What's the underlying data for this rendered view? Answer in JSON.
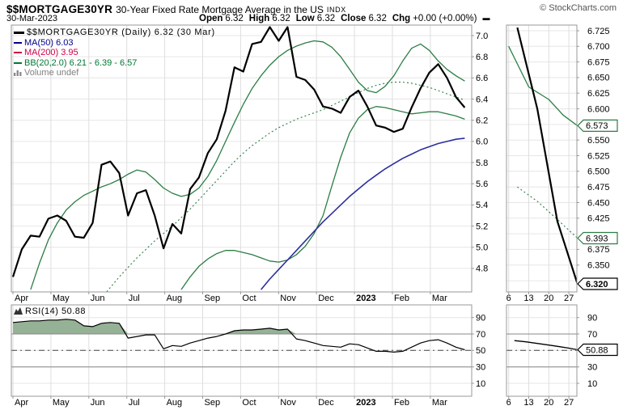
{
  "header": {
    "symbol": "$$MORTGAGE30YR",
    "description": "30-Year Fixed Rate Mortgage Average in the US",
    "exchange": "INDX",
    "credit": "© StockCharts.com",
    "date": "30-Mar-2023",
    "quote": [
      {
        "key": "open",
        "label": "Open",
        "value": "6.32"
      },
      {
        "key": "high",
        "label": "High",
        "value": "6.32"
      },
      {
        "key": "low",
        "label": "Low",
        "value": "6.32"
      },
      {
        "key": "close",
        "label": "Close",
        "value": "6.32"
      },
      {
        "key": "chg",
        "label": "Chg",
        "value": "+0.00 (+0.00%)"
      }
    ],
    "change_marker": "▬"
  },
  "legend": [
    {
      "key": "price",
      "icon": "line-swatch",
      "text": "$$MORTGAGE30YR (Daily) 6.32 (30 Mar)",
      "color": "#000000"
    },
    {
      "key": "ma50",
      "icon": "line-swatch",
      "text": "MA(50) 6.03",
      "color": "#00008b"
    },
    {
      "key": "ma200",
      "icon": "line-swatch",
      "text": "MA(200) 3.95",
      "color": "#cc0044"
    },
    {
      "key": "bb",
      "icon": "line-swatch",
      "text": "BB(20,2.0) 6.21 - 6.39 - 6.57",
      "color": "#007733"
    },
    {
      "key": "volume",
      "icon": "volume-icon",
      "text": "Volume undef",
      "color": "#808080"
    }
  ],
  "colors": {
    "price": "#000000",
    "ma50": "#2e2e9e",
    "ma200": "#cc0044",
    "bb": "#2b7d44",
    "rsi_fill": "#96b296",
    "grid": "#e6e6e6",
    "grid_v": "#dedede",
    "border": "#999999",
    "level": "#888888",
    "midline": "#444444"
  },
  "chart_data": [
    {
      "id": "price-main",
      "type": "line",
      "title": "$$MORTGAGE30YR (Daily)",
      "x_labels": [
        "Apr",
        "May",
        "Jun",
        "Jul",
        "Aug",
        "Sep",
        "Oct",
        "Nov",
        "Dec",
        "2023",
        "Feb",
        "Mar"
      ],
      "y_ticks": [
        "7.0",
        "6.8",
        "6.6",
        "6.4",
        "6.2",
        "6.0",
        "5.8",
        "5.6",
        "5.4",
        "5.2",
        "5.0",
        "4.8"
      ],
      "ylim": [
        4.578,
        7.099
      ],
      "series": [
        {
          "name": "bb-upper",
          "color": "#2b7d44",
          "width": 1.3,
          "dash": "",
          "values": [
            null,
            null,
            4.6,
            4.85,
            5.07,
            5.23,
            5.35,
            5.43,
            5.49,
            5.53,
            5.57,
            5.6,
            5.64,
            5.69,
            5.73,
            5.71,
            5.64,
            5.56,
            5.51,
            5.48,
            5.5,
            5.56,
            5.67,
            5.82,
            6.0,
            6.18,
            6.35,
            6.5,
            6.62,
            6.72,
            6.8,
            6.86,
            6.9,
            6.93,
            6.95,
            6.94,
            6.89,
            6.8,
            6.68,
            6.56,
            6.48,
            6.46,
            6.52,
            6.62,
            6.76,
            6.88,
            6.92,
            6.86,
            6.76,
            6.68,
            6.62,
            6.57
          ]
        },
        {
          "name": "bb-middle",
          "color": "#2b7d44",
          "width": 1.1,
          "dash": "2 3",
          "values": [
            null,
            null,
            null,
            null,
            null,
            null,
            null,
            null,
            null,
            null,
            4.52,
            4.62,
            4.72,
            4.81,
            4.9,
            4.98,
            5.06,
            5.13,
            5.2,
            5.28,
            5.36,
            5.45,
            5.54,
            5.63,
            5.72,
            5.81,
            5.89,
            5.96,
            6.02,
            6.08,
            6.13,
            6.17,
            6.21,
            6.24,
            6.27,
            6.3,
            6.34,
            6.38,
            6.42,
            6.46,
            6.5,
            6.53,
            6.55,
            6.56,
            6.56,
            6.55,
            6.53,
            6.51,
            6.48,
            6.45,
            6.42,
            6.39
          ]
        },
        {
          "name": "bb-lower",
          "color": "#2b7d44",
          "width": 1.3,
          "dash": "",
          "values": [
            null,
            null,
            null,
            null,
            null,
            null,
            null,
            null,
            null,
            null,
            null,
            null,
            null,
            null,
            null,
            null,
            null,
            null,
            null,
            4.6,
            4.72,
            4.82,
            4.89,
            4.94,
            4.97,
            4.97,
            4.95,
            4.93,
            4.9,
            4.87,
            4.86,
            4.88,
            4.93,
            5.01,
            5.13,
            5.3,
            5.58,
            5.85,
            6.08,
            6.22,
            6.3,
            6.33,
            6.32,
            6.3,
            6.28,
            6.26,
            6.27,
            6.28,
            6.28,
            6.26,
            6.24,
            6.21
          ]
        },
        {
          "name": "ma50",
          "color": "#2e2e9e",
          "width": 1.6,
          "dash": "",
          "values": [
            null,
            null,
            null,
            null,
            null,
            null,
            null,
            null,
            null,
            null,
            null,
            null,
            null,
            null,
            null,
            null,
            null,
            null,
            null,
            null,
            null,
            null,
            null,
            null,
            null,
            null,
            null,
            null,
            4.6,
            4.7,
            4.79,
            4.88,
            4.97,
            5.06,
            5.15,
            5.24,
            5.32,
            5.4,
            5.48,
            5.55,
            5.62,
            5.68,
            5.74,
            5.79,
            5.84,
            5.88,
            5.92,
            5.95,
            5.98,
            6.0,
            6.02,
            6.03
          ]
        },
        {
          "name": "price",
          "color": "#000000",
          "width": 2.2,
          "dash": "",
          "values": [
            4.72,
            4.98,
            5.11,
            5.1,
            5.27,
            5.3,
            5.25,
            5.1,
            5.09,
            5.23,
            5.78,
            5.81,
            5.7,
            5.3,
            5.51,
            5.54,
            5.3,
            4.99,
            5.22,
            5.13,
            5.55,
            5.66,
            5.89,
            6.02,
            6.29,
            6.7,
            6.66,
            6.92,
            6.94,
            7.08,
            6.95,
            7.08,
            6.61,
            6.58,
            6.49,
            6.33,
            6.31,
            6.27,
            6.42,
            6.48,
            6.33,
            6.15,
            6.13,
            6.09,
            6.12,
            6.32,
            6.5,
            6.65,
            6.73,
            6.6,
            6.42,
            6.32
          ]
        }
      ]
    },
    {
      "id": "price-zoom",
      "type": "line",
      "x_ticks": [
        "6",
        "13",
        "20",
        "27"
      ],
      "y_ticks": [
        "6.725",
        "6.700",
        "6.675",
        "6.650",
        "6.625",
        "6.600",
        "6.550",
        "6.525",
        "6.500",
        "6.475",
        "6.450",
        "6.425",
        "6.375",
        "6.350"
      ],
      "grid_from": 6.725,
      "grid_step": 0.025,
      "grid_to": 6.325,
      "ylim": [
        6.307,
        6.734
      ],
      "series": [
        {
          "name": "bb-upper",
          "color": "#2b7d44",
          "width": 1.3,
          "dash": "",
          "points": [
            [
              6,
              6.7
            ],
            [
              13,
              6.635
            ],
            [
              20,
              6.615
            ],
            [
              25,
              6.59
            ],
            [
              30,
              6.573
            ]
          ]
        },
        {
          "name": "bb-middle",
          "color": "#2b7d44",
          "width": 1.1,
          "dash": "2 3",
          "points": [
            [
              9,
              6.475
            ],
            [
              16,
              6.452
            ],
            [
              23,
              6.423
            ],
            [
              30,
              6.393
            ]
          ]
        },
        {
          "name": "price",
          "color": "#000000",
          "width": 2.2,
          "dash": "",
          "points": [
            [
              9,
              6.73
            ],
            [
              16,
              6.6
            ],
            [
              23,
              6.42
            ],
            [
              30,
              6.32
            ]
          ]
        }
      ],
      "callouts": [
        {
          "label": "6.573",
          "value": 6.573,
          "border": "#2b7d44",
          "bold": false
        },
        {
          "label": "6.393",
          "value": 6.393,
          "border": "#2b7d44",
          "bold": false
        },
        {
          "label": "6.320",
          "value": 6.32,
          "border": "#000000",
          "bold": true
        }
      ]
    },
    {
      "id": "rsi-main",
      "type": "line",
      "title": "RSI(14) 50.88",
      "x_labels": [
        "Apr",
        "May",
        "Jun",
        "Jul",
        "Aug",
        "Sep",
        "Oct",
        "Nov",
        "Dec",
        "2023",
        "Feb",
        "Mar"
      ],
      "y_ticks": [
        "90",
        "70",
        "50",
        "30",
        "10"
      ],
      "ylim": [
        -5.8,
        105.5
      ],
      "levels": [
        {
          "value": 70,
          "style": "solid"
        },
        {
          "value": 50,
          "style": "dashdot"
        },
        {
          "value": 30,
          "style": "solid"
        }
      ],
      "fill_above": 70,
      "series": [
        {
          "name": "rsi",
          "color": "#000000",
          "width": 1.2,
          "dash": "",
          "values": [
            84,
            85,
            86,
            86,
            87,
            87,
            88,
            87,
            80,
            79,
            83,
            84,
            83,
            65,
            67,
            69,
            69,
            52,
            56,
            55,
            59,
            62,
            65,
            67,
            70,
            74,
            75,
            75,
            76,
            77,
            75,
            76,
            64,
            62,
            59,
            56,
            55,
            54,
            58,
            57,
            53,
            49,
            49,
            48,
            49,
            54,
            59,
            62,
            63,
            59,
            54,
            50.88
          ]
        }
      ]
    },
    {
      "id": "rsi-zoom",
      "type": "line",
      "x_ticks": [
        "6",
        "13",
        "20",
        "27"
      ],
      "y_ticks": [
        "90",
        "70",
        "50",
        "30",
        "10"
      ],
      "ylim": [
        -5.8,
        105.5
      ],
      "levels": [
        {
          "value": 70,
          "style": "solid"
        },
        {
          "value": 50,
          "style": "dashdot"
        },
        {
          "value": 30,
          "style": "solid"
        }
      ],
      "series": [
        {
          "name": "rsi",
          "color": "#000000",
          "width": 1.3,
          "dash": "",
          "points": [
            [
              8,
              62
            ],
            [
              12,
              60.5
            ],
            [
              16,
              58.5
            ],
            [
              20,
              56.5
            ],
            [
              24,
              54.5
            ],
            [
              27,
              52.8
            ],
            [
              30,
              50.88
            ]
          ]
        }
      ],
      "callouts": [
        {
          "label": "50.88",
          "value": 50.88,
          "border": "#000000",
          "bold": false
        }
      ]
    }
  ]
}
